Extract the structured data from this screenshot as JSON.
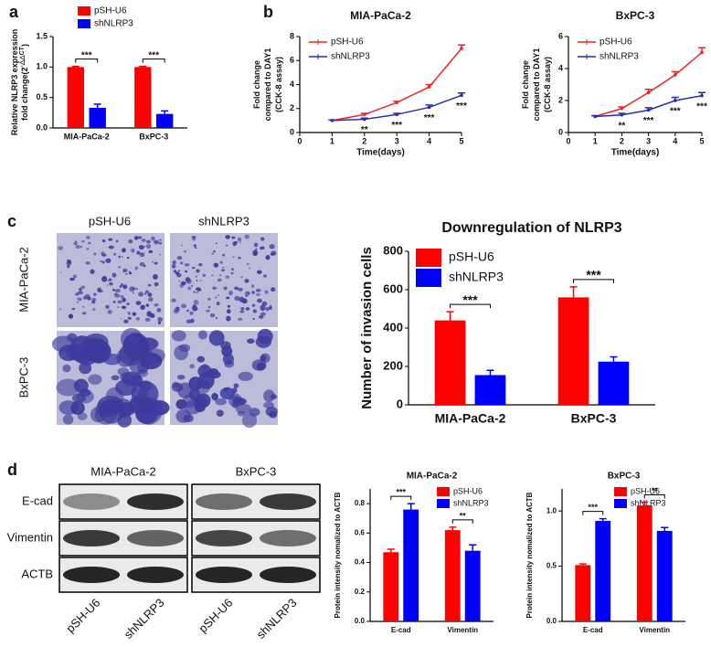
{
  "panel_labels": [
    "a",
    "b",
    "c",
    "d"
  ],
  "chart_data": [
    {
      "type": "bar",
      "y_label": [
        "Relative NLRP3 expression",
        "fold change(2"
      ],
      "y_label_superscript": "-△△CT",
      "y_label_suffix": ")",
      "categories": [
        "MIA-PaCa-2",
        "BxPC-3"
      ],
      "series": [
        {
          "name": "pSH-U6",
          "color": "#ff0000",
          "values": [
            1.0,
            1.0
          ],
          "errors": [
            0.01,
            0.01
          ]
        },
        {
          "name": "shNLRP3",
          "color": "#0000ff",
          "values": [
            0.33,
            0.23
          ],
          "errors": [
            0.06,
            0.05
          ]
        }
      ],
      "ylim": [
        0,
        1.5
      ],
      "yticks": [
        {
          "value": 0,
          "label": "0.0"
        },
        0.5,
        {
          "value": 1,
          "label": "1.0"
        },
        1.5
      ],
      "annotations": [
        "***",
        "***"
      ]
    },
    {
      "type": "line",
      "title": "MIA-PaCa-2",
      "x_label": "Time(days)",
      "y_label": [
        "Fold change",
        "compared to DAY1",
        "(CCK-8 assay)"
      ],
      "x": [
        1,
        2,
        3,
        4,
        5
      ],
      "series": [
        {
          "name": "pSH-U6",
          "color": "#e8262a",
          "values": [
            1.0,
            1.5,
            2.5,
            3.8,
            7.0
          ],
          "errors": [
            0.05,
            0.1,
            0.1,
            0.2,
            0.3
          ]
        },
        {
          "name": "shNLRP3",
          "color": "#2a2ea8",
          "values": [
            1.0,
            1.1,
            1.5,
            2.1,
            3.1
          ],
          "errors": [
            0.05,
            0.1,
            0.1,
            0.2,
            0.2
          ]
        }
      ],
      "xlim": [
        0,
        5
      ],
      "xticks": [
        0,
        1,
        2,
        3,
        4,
        5
      ],
      "ylim": [
        0,
        8
      ],
      "yticks": [
        0,
        2,
        4,
        6,
        8
      ],
      "annotations": [
        null,
        "**",
        "***",
        "***",
        "***"
      ]
    },
    {
      "type": "line",
      "title": "BxPC-3",
      "x_label": "Time(days)",
      "y_label": [
        "Fold change",
        "compared to DAY1",
        "(CCK-8 assay)"
      ],
      "x": [
        1,
        2,
        3,
        4,
        5
      ],
      "series": [
        {
          "name": "pSH-U6",
          "color": "#e8262a",
          "values": [
            1.0,
            1.5,
            2.5,
            3.6,
            5.0
          ],
          "errors": [
            0.05,
            0.1,
            0.2,
            0.2,
            0.3
          ]
        },
        {
          "name": "shNLRP3",
          "color": "#2a2ea8",
          "values": [
            1.0,
            1.1,
            1.4,
            2.0,
            2.3
          ],
          "errors": [
            0.05,
            0.1,
            0.15,
            0.2,
            0.2
          ]
        }
      ],
      "xlim": [
        0,
        5
      ],
      "xticks": [
        0,
        1,
        2,
        3,
        4,
        5
      ],
      "ylim": [
        0,
        6
      ],
      "yticks": [
        0,
        2,
        4,
        6
      ],
      "annotations": [
        null,
        "**",
        "***",
        "***",
        "***"
      ]
    },
    {
      "type": "bar",
      "title": "Downregulation of NLRP3",
      "y_label": [
        "Number of invasion cells"
      ],
      "categories": [
        "MIA-PaCa-2",
        "BxPC-3"
      ],
      "series": [
        {
          "name": "pSH-U6",
          "color": "#ff0000",
          "values": [
            440,
            560
          ],
          "errors": [
            45,
            55
          ]
        },
        {
          "name": "shNLRP3",
          "color": "#0000ff",
          "values": [
            155,
            225
          ],
          "errors": [
            25,
            25
          ]
        }
      ],
      "ylim": [
        0,
        800
      ],
      "yticks": [
        0,
        200,
        400,
        600,
        800
      ],
      "annotations": [
        "***",
        "***"
      ]
    },
    {
      "type": "bar",
      "title": "MIA-PaCa-2",
      "y_label": [
        "Protein intensity nomalized to ACTB"
      ],
      "categories": [
        "E-cad",
        "Vimentin"
      ],
      "series": [
        {
          "name": "pSH-U6",
          "color": "#ff0000",
          "values": [
            0.47,
            0.62
          ],
          "errors": [
            0.02,
            0.02
          ]
        },
        {
          "name": "shNLRP3",
          "color": "#0000ff",
          "values": [
            0.76,
            0.48
          ],
          "errors": [
            0.04,
            0.04
          ]
        }
      ],
      "ylim": [
        0,
        0.9
      ],
      "yticks": [
        {
          "value": 0,
          "label": "0.0"
        },
        0.2,
        0.4,
        0.6,
        0.8
      ],
      "annotations": [
        "***",
        "**"
      ]
    },
    {
      "type": "bar",
      "title": "BxPC-3",
      "y_label": [
        "Protein intensity nomalized to ACTB"
      ],
      "categories": [
        "E-cad",
        "Vimentin"
      ],
      "series": [
        {
          "name": "pSH-U6",
          "color": "#ff0000",
          "values": [
            0.51,
            1.05
          ],
          "errors": [
            0.01,
            0.03
          ]
        },
        {
          "name": "shNLRP3",
          "color": "#0000ff",
          "values": [
            0.91,
            0.82
          ],
          "errors": [
            0.02,
            0.03
          ]
        }
      ],
      "ylim": [
        0,
        1.2
      ],
      "yticks": [
        {
          "value": 0,
          "label": "0.0"
        },
        0.5,
        {
          "value": 1,
          "label": "1.0"
        }
      ],
      "annotations": [
        "***",
        "**"
      ]
    }
  ],
  "invasion_images": {
    "columns": [
      "pSH-U6",
      "shNLRP3"
    ],
    "rows": [
      "MIA-PaCa-2",
      "BxPC-3"
    ]
  },
  "western_blot": {
    "cell_lines": [
      "MIA-PaCa-2",
      "BxPC-3"
    ],
    "proteins": [
      "E-cad",
      "Vimentin",
      "ACTB"
    ],
    "lanes": [
      "pSH-U6",
      "shNLRP3",
      "pSH-U6",
      "shNLRP3"
    ]
  }
}
